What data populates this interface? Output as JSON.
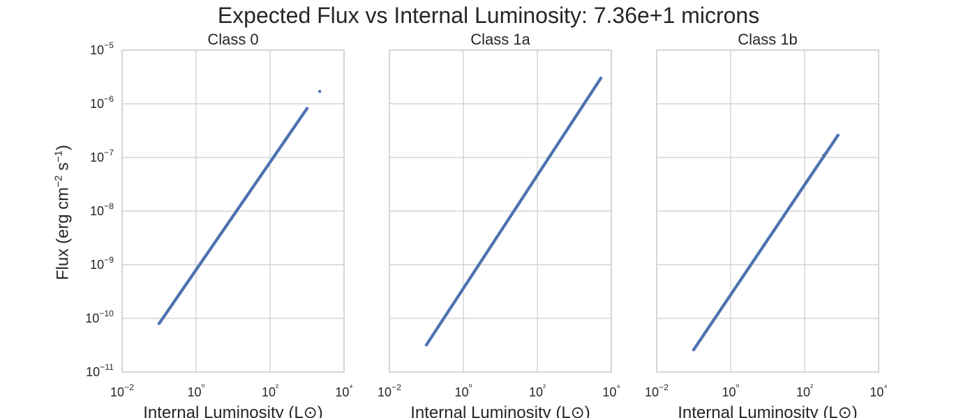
{
  "figure": {
    "title": "Expected Flux vs Internal Luminosity: 7.36e+1 microns",
    "ylabel_prefix": "Flux (erg cm",
    "ylabel_exp1": "−2",
    "ylabel_mid": " s",
    "ylabel_exp2": "−1",
    "ylabel_suffix": ")",
    "point_color": "#4c72b0",
    "grid_color": "#cccccc",
    "frame_color": "#cccccc"
  },
  "chart_data": [
    {
      "type": "scatter",
      "title": "Class 0",
      "xlabel": "Internal Luminosity (L⊙)",
      "ylabel": "Flux (erg cm−2 s−1)",
      "xscale": "log",
      "yscale": "log",
      "xlim": [
        0.01,
        10000
      ],
      "ylim": [
        1e-11,
        1e-05
      ],
      "grid": true,
      "x_ticks": [
        "10−2",
        "10⁰",
        "10²",
        "10⁴"
      ],
      "y_ticks": [
        "10−11",
        "10−10",
        "10−9",
        "10−8",
        "10−7",
        "10−6",
        "10−5"
      ],
      "x_range": [
        0.1,
        1000
      ],
      "y_at_x_min": 8e-11,
      "y_at_x_max": 8.2e-07,
      "outlier": {
        "x": 2200,
        "y": 1.7e-06
      }
    },
    {
      "type": "scatter",
      "title": "Class 1a",
      "xlabel": "Internal Luminosity (L⊙)",
      "xscale": "log",
      "yscale": "log",
      "xlim": [
        0.01,
        10000
      ],
      "ylim": [
        1e-11,
        1e-05
      ],
      "grid": true,
      "x_ticks": [
        "10−2",
        "10⁰",
        "10²",
        "10⁴"
      ],
      "x_range": [
        0.1,
        5200
      ],
      "y_at_x_min": 3.2e-11,
      "y_at_x_max": 3e-06,
      "outlier": {
        "x": 2700,
        "y": 1.5e-06
      }
    },
    {
      "type": "scatter",
      "title": "Class 1b",
      "xlabel": "Internal Luminosity (L⊙)",
      "xscale": "log",
      "yscale": "log",
      "xlim": [
        0.01,
        10000
      ],
      "ylim": [
        1e-11,
        1e-05
      ],
      "grid": true,
      "x_ticks": [
        "10−2",
        "10⁰",
        "10²",
        "10⁴"
      ],
      "x_range": [
        0.1,
        800
      ],
      "y_at_x_min": 2.6e-11,
      "y_at_x_max": 2.6e-07,
      "outlier": {
        "x": 330,
        "y": 1.1e-07
      }
    }
  ]
}
